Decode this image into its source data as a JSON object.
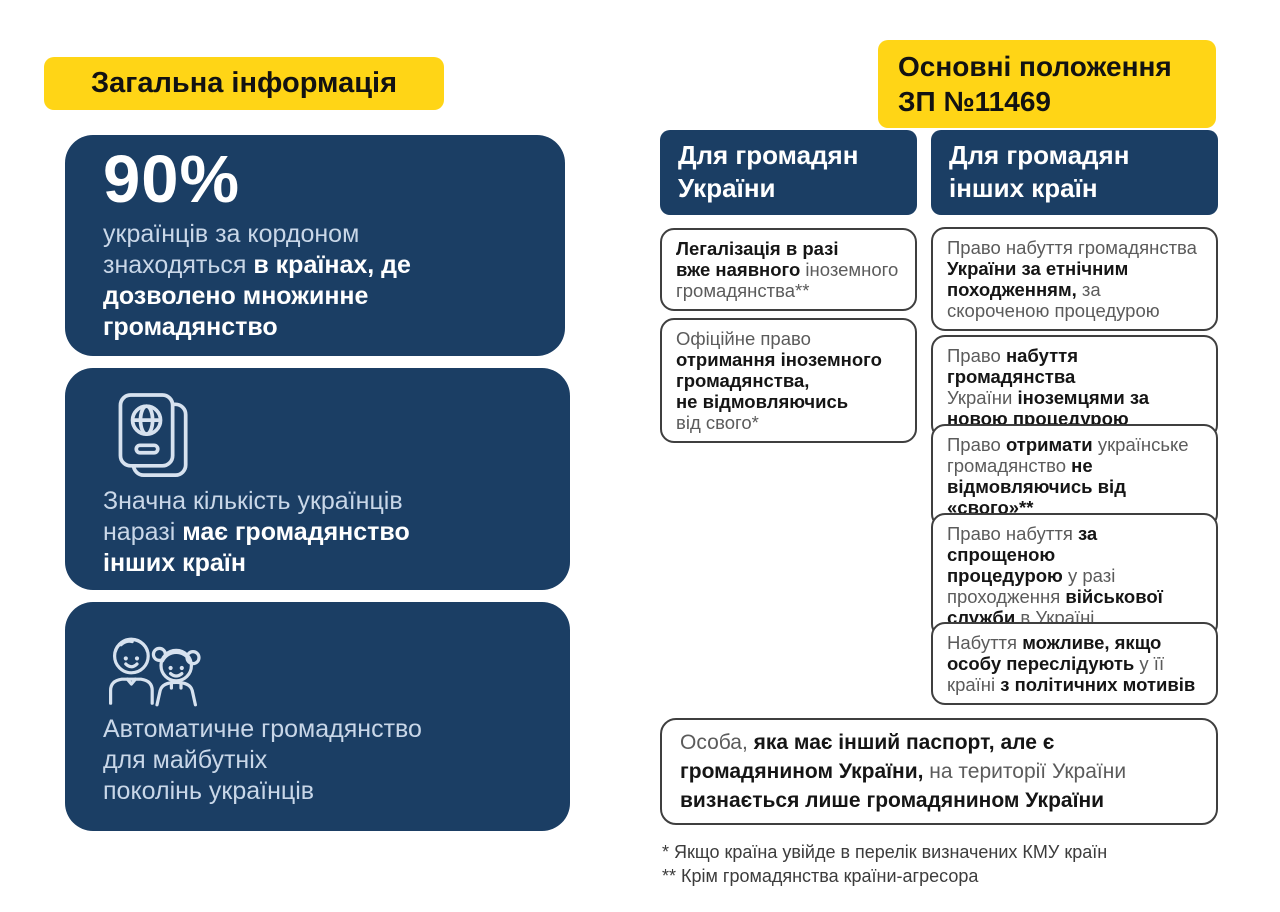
{
  "colors": {
    "navy": "#1B3E64",
    "yellow": "#FFD516",
    "card_regular_text": "#C9D7E8",
    "card_bold_text": "#FFFFFF",
    "box_border": "#3F3F3F",
    "box_regular_text": "#5B5B5B",
    "box_bold_text": "#151515"
  },
  "general": {
    "banner": "Загальна інформація",
    "stat_card": {
      "stat": "90%",
      "text": [
        [
          {
            "t": "українців за кордоном",
            "b": false
          }
        ],
        [
          {
            "t": "знаходяться ",
            "b": false
          },
          {
            "t": "в країнах, де",
            "b": true
          }
        ],
        [
          {
            "t": "дозволено множинне",
            "b": true
          }
        ],
        [
          {
            "t": "громадянство",
            "b": true
          }
        ]
      ]
    },
    "passport_card": {
      "icon": "passport-icon",
      "text": [
        [
          {
            "t": "Значна кількість українців",
            "b": false
          }
        ],
        [
          {
            "t": "наразі ",
            "b": false
          },
          {
            "t": "має громадянство",
            "b": true
          }
        ],
        [
          {
            "t": "інших країн",
            "b": true
          }
        ]
      ]
    },
    "children_card": {
      "icon": "children-icon",
      "text": [
        [
          {
            "t": "Автоматичне громадянство",
            "b": false
          }
        ],
        [
          {
            "t": "для майбутніх",
            "b": false
          }
        ],
        [
          {
            "t": "поколінь українців",
            "b": false
          }
        ]
      ]
    }
  },
  "provisions": {
    "banner": "Основні положення\nЗП №11469",
    "col_ua": {
      "header": "Для громадян\nУкраїни",
      "boxes": [
        {
          "text": [
            [
              {
                "t": "Легалізація в разі",
                "b": true
              }
            ],
            [
              {
                "t": "вже наявного",
                "b": true
              },
              {
                "t": " іноземного",
                "b": false
              }
            ],
            [
              {
                "t": "громадянства**",
                "b": false
              }
            ]
          ]
        },
        {
          "text": [
            [
              {
                "t": "Офіційне право",
                "b": false
              }
            ],
            [
              {
                "t": "отримання іноземного",
                "b": true
              }
            ],
            [
              {
                "t": "громадянства,",
                "b": true
              }
            ],
            [
              {
                "t": "не відмовляючись",
                "b": true
              }
            ],
            [
              {
                "t": "від свого*",
                "b": false
              }
            ]
          ]
        }
      ]
    },
    "col_other": {
      "header": "Для громадян\nінших країн",
      "boxes": [
        {
          "text": [
            [
              {
                "t": "Право набуття громадянства",
                "b": false
              }
            ],
            [
              {
                "t": "України за етнічним",
                "b": true
              }
            ],
            [
              {
                "t": "походженням,",
                "b": true
              },
              {
                "t": " за",
                "b": false
              }
            ],
            [
              {
                "t": "скороченою процедурою",
                "b": false
              }
            ]
          ]
        },
        {
          "text": [
            [
              {
                "t": "Право ",
                "b": false
              },
              {
                "t": "набуття громадянства",
                "b": true
              }
            ],
            [
              {
                "t": "України ",
                "b": false
              },
              {
                "t": "іноземцями за",
                "b": true
              }
            ],
            [
              {
                "t": "новою процедурою",
                "b": true
              }
            ]
          ]
        },
        {
          "text": [
            [
              {
                "t": "Право ",
                "b": false
              },
              {
                "t": "отримати",
                "b": true
              },
              {
                "t": " українське",
                "b": false
              }
            ],
            [
              {
                "t": "громадянство ",
                "b": false
              },
              {
                "t": "не",
                "b": true
              }
            ],
            [
              {
                "t": "відмовляючись від «свого»**",
                "b": true
              }
            ]
          ]
        },
        {
          "text": [
            [
              {
                "t": "Право набуття ",
                "b": false
              },
              {
                "t": "за спрощеною",
                "b": true
              }
            ],
            [
              {
                "t": "процедурою",
                "b": true
              },
              {
                "t": " у разі",
                "b": false
              }
            ],
            [
              {
                "t": "проходження ",
                "b": false
              },
              {
                "t": "військової",
                "b": true
              }
            ],
            [
              {
                "t": "служби",
                "b": true
              },
              {
                "t": " в Україні",
                "b": false
              }
            ]
          ]
        },
        {
          "text": [
            [
              {
                "t": "Набуття ",
                "b": false
              },
              {
                "t": "можливе, якщо",
                "b": true
              }
            ],
            [
              {
                "t": "особу переслідують",
                "b": true
              },
              {
                "t": " у її",
                "b": false
              }
            ],
            [
              {
                "t": "країні ",
                "b": false
              },
              {
                "t": "з політичних мотивів",
                "b": true
              }
            ]
          ]
        }
      ]
    },
    "bottom_note": [
      [
        {
          "t": "Особа, ",
          "b": false
        },
        {
          "t": "яка має інший паспорт, але є",
          "b": true
        }
      ],
      [
        {
          "t": "громадянином України,",
          "b": true
        },
        {
          "t": " на території України",
          "b": false
        }
      ],
      [
        {
          "t": "визнається лише громадянином України",
          "b": true
        }
      ]
    ],
    "footnotes": [
      "* Якщо країна увійде в перелік визначених КМУ країн",
      "** Крім громадянства країни-агресора"
    ]
  }
}
